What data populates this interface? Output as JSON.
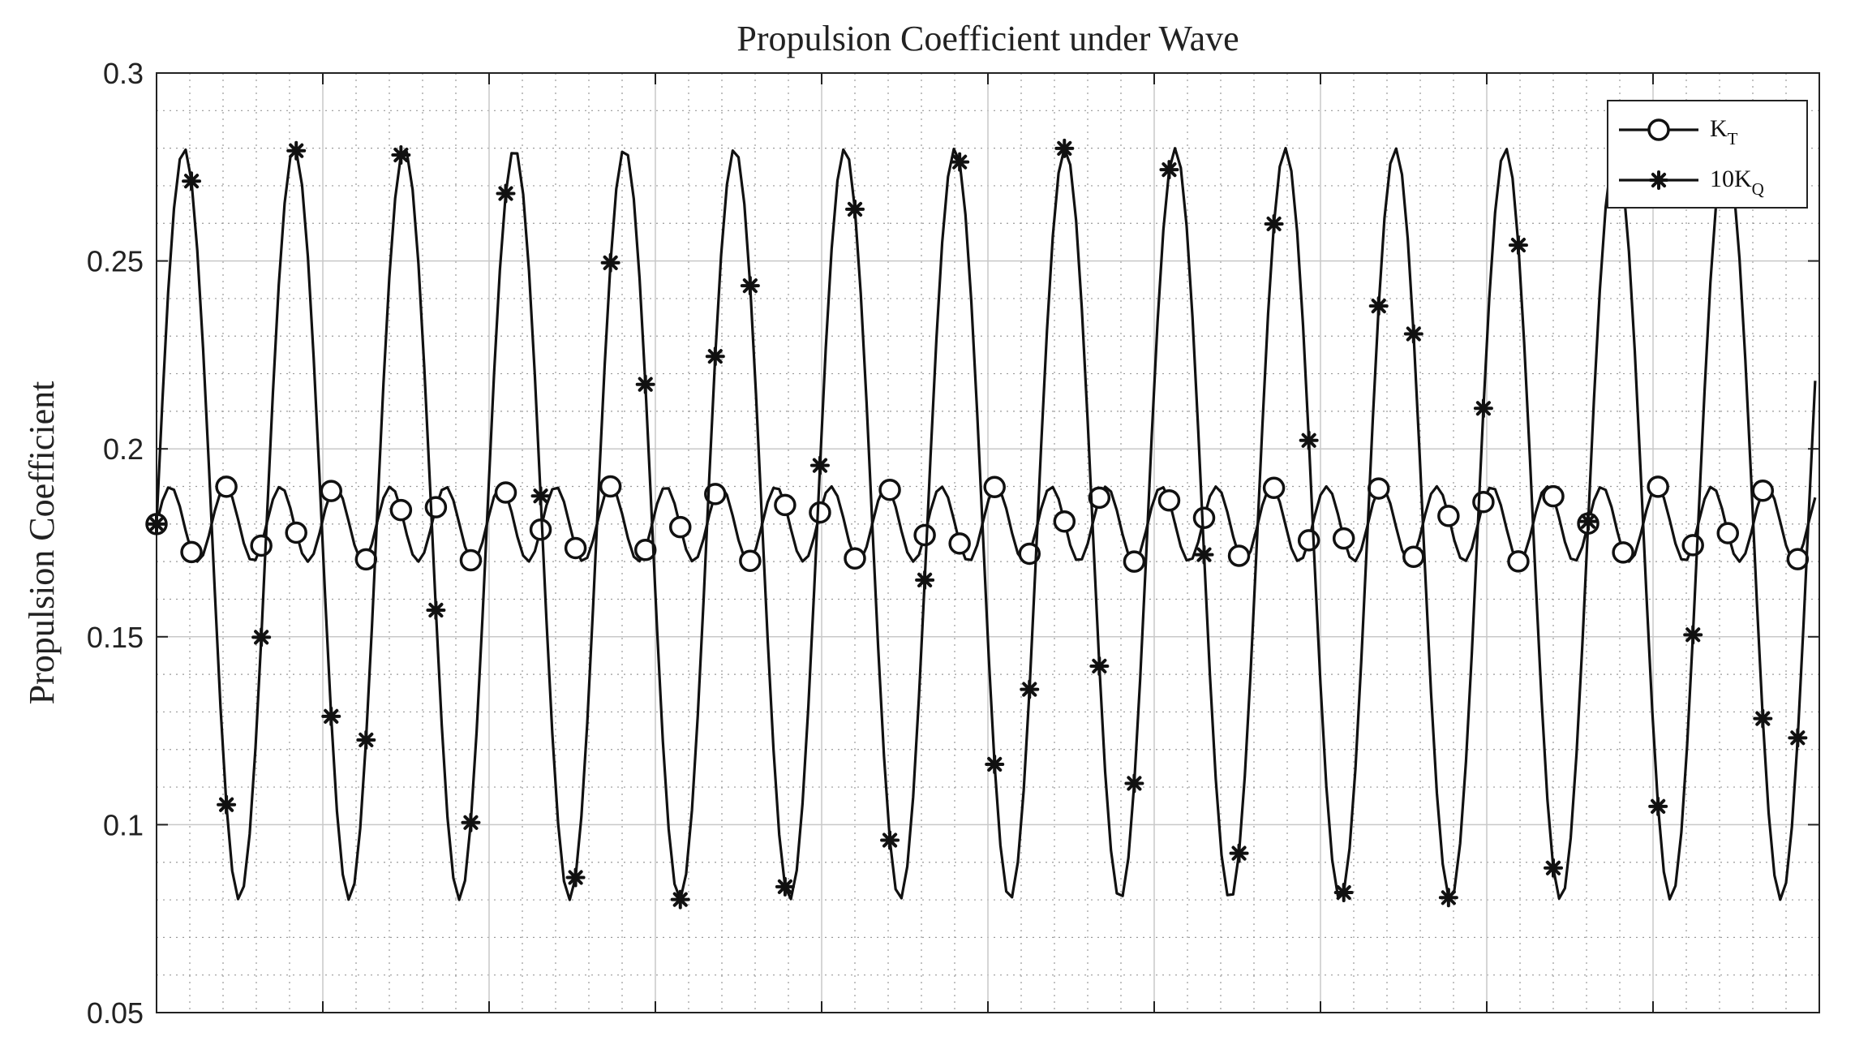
{
  "chart_data": {
    "type": "line",
    "title": "Propulsion Coefficient under Wave",
    "ylabel": "Propulsion Coefficient",
    "xlabel": "",
    "ylim": [
      0.05,
      0.3
    ],
    "yticks": [
      "0.05",
      "0.1",
      "0.15",
      "0.2",
      "0.25",
      "0.3"
    ],
    "xlim": [
      0,
      10
    ],
    "grid": true,
    "minor_grid": true,
    "legend_position": "top-right",
    "series": [
      {
        "name": "K",
        "subscript": "T",
        "marker": "circle",
        "color": "#111111",
        "mean": 0.18,
        "amplitude": 0.01,
        "cycles_per_unit": 3.02,
        "phase": 0.25
      },
      {
        "name": "10K",
        "subscript": "Q",
        "marker": "asterisk",
        "color": "#111111",
        "mean": 0.18,
        "amplitude": 0.1,
        "cycles_per_unit": 1.51,
        "phase": 0.25
      }
    ]
  }
}
